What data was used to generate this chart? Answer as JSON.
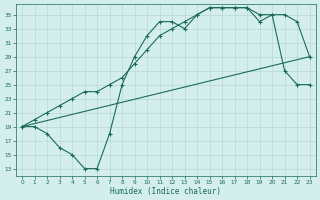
{
  "xlabel": "Humidex (Indice chaleur)",
  "bg_color": "#d4eeee",
  "line_color": "#1a6b5a",
  "grid_color": "#b8d8d8",
  "xlim": [
    -0.5,
    23.5
  ],
  "ylim": [
    12,
    36.5
  ],
  "xticks": [
    0,
    1,
    2,
    3,
    4,
    5,
    6,
    7,
    8,
    9,
    10,
    11,
    12,
    13,
    14,
    15,
    16,
    17,
    18,
    19,
    20,
    21,
    22,
    23
  ],
  "yticks": [
    13,
    15,
    17,
    19,
    21,
    23,
    25,
    27,
    29,
    31,
    33,
    35
  ],
  "curve1_x": [
    0,
    1,
    2,
    3,
    4,
    5,
    6,
    7,
    8,
    9,
    10,
    11,
    12,
    13,
    14,
    15,
    16,
    17,
    18,
    19,
    20,
    21,
    22,
    23
  ],
  "curve1_y": [
    19,
    20,
    21,
    22,
    23,
    24,
    24,
    25,
    26,
    28,
    30,
    32,
    33,
    34,
    35,
    36,
    36,
    36,
    36,
    35,
    35,
    35,
    34,
    29
  ],
  "curve2_x": [
    0,
    1,
    2,
    3,
    4,
    5,
    6,
    7,
    8,
    9,
    10,
    11,
    12,
    13,
    14,
    15,
    16,
    17,
    18,
    19,
    20,
    21,
    22,
    23
  ],
  "curve2_y": [
    19,
    19,
    18,
    16,
    15,
    13,
    13,
    18,
    25,
    29,
    32,
    34,
    34,
    33,
    35,
    36,
    36,
    36,
    36,
    34,
    35,
    27,
    25,
    25
  ],
  "line3_x": [
    0,
    23
  ],
  "line3_y": [
    19,
    29
  ]
}
